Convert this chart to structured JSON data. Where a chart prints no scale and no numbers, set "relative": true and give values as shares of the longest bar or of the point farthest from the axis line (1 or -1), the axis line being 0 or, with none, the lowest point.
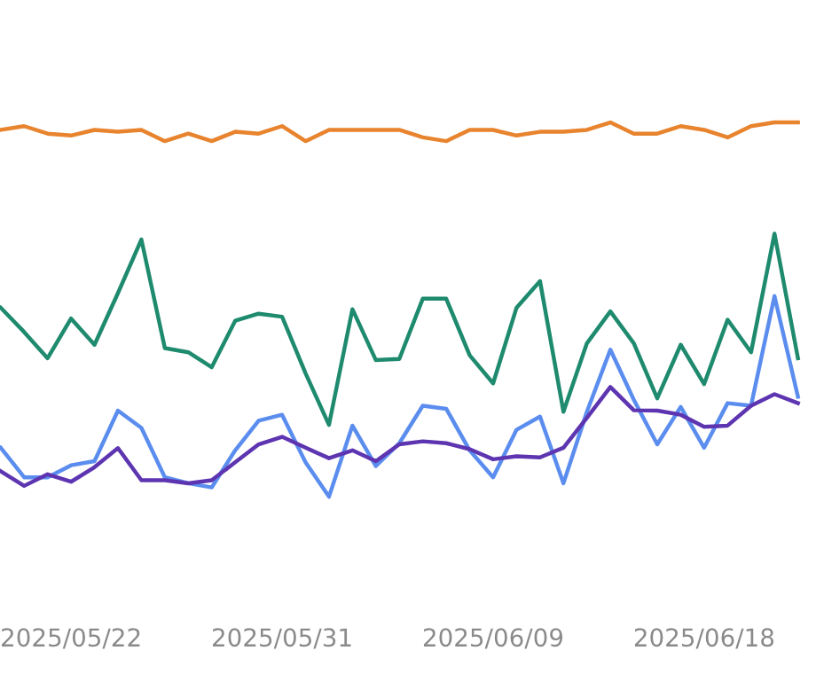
{
  "chart_data": {
    "type": "line",
    "relative": true,
    "grid": false,
    "marker": "none",
    "line_style": "solid",
    "categories": [
      null,
      null,
      null,
      "2025/05/22",
      null,
      null,
      null,
      null,
      null,
      null,
      null,
      null,
      "2025/05/31",
      null,
      null,
      null,
      null,
      null,
      null,
      null,
      null,
      "2025/06/09",
      null,
      null,
      null,
      null,
      null,
      null,
      null,
      null,
      "2025/06/18",
      null,
      null,
      null,
      null
    ],
    "series": [
      {
        "color": "#e8832e",
        "values": [
          0.98,
          0.99,
          0.97,
          0.965,
          0.98,
          0.975,
          0.98,
          0.95,
          0.97,
          0.95,
          0.975,
          0.97,
          0.99,
          0.95,
          0.98,
          0.98,
          0.98,
          0.98,
          0.96,
          0.95,
          0.98,
          0.98,
          0.965,
          0.975,
          0.975,
          0.98,
          1.0,
          0.97,
          0.97,
          0.99,
          0.98,
          0.96,
          0.99,
          1.0,
          1.0
        ]
      },
      {
        "color": "#1e8a6e",
        "values": [
          0.505,
          0.44,
          0.37,
          0.476,
          0.406,
          0.544,
          0.687,
          0.397,
          0.386,
          0.346,
          0.47,
          0.489,
          0.481,
          0.33,
          0.192,
          0.501,
          0.365,
          0.368,
          0.529,
          0.529,
          0.378,
          0.303,
          0.505,
          0.576,
          0.227,
          0.41,
          0.495,
          0.41,
          0.263,
          0.406,
          0.301,
          0.473,
          0.386,
          0.703,
          0.37
        ]
      },
      {
        "color": "#5b8def",
        "values": [
          0.131,
          0.052,
          0.052,
          0.084,
          0.095,
          0.23,
          0.184,
          0.052,
          0.036,
          0.025,
          0.124,
          0.203,
          0.219,
          0.092,
          0.0,
          0.19,
          0.082,
          0.143,
          0.243,
          0.235,
          0.124,
          0.052,
          0.179,
          0.214,
          0.036,
          0.227,
          0.393,
          0.259,
          0.14,
          0.24,
          0.131,
          0.25,
          0.243,
          0.536,
          0.267
        ]
      },
      {
        "color": "#5e35b1",
        "values": [
          0.068,
          0.029,
          0.06,
          0.04,
          0.079,
          0.13,
          0.044,
          0.044,
          0.036,
          0.044,
          0.092,
          0.14,
          0.16,
          0.131,
          0.103,
          0.124,
          0.095,
          0.14,
          0.148,
          0.143,
          0.127,
          0.1,
          0.108,
          0.105,
          0.131,
          0.211,
          0.293,
          0.231,
          0.23,
          0.219,
          0.187,
          0.19,
          0.243,
          0.274,
          0.25
        ]
      }
    ]
  }
}
